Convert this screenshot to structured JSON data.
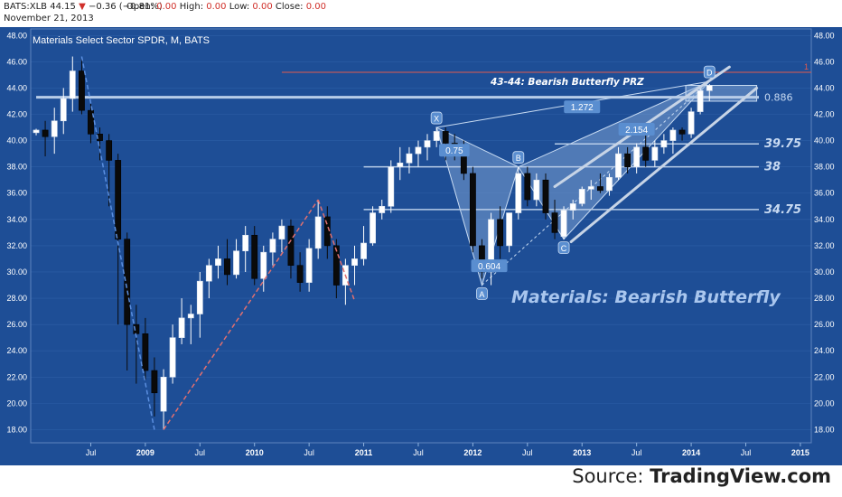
{
  "header": {
    "symbol": "BATS:XLB",
    "last": "44.15",
    "change": "−0.36 (−0.81%)",
    "open_label": "Open:",
    "open": "0.00",
    "high_label": "High:",
    "high": "0.00",
    "low_label": "Low:",
    "low": "0.00",
    "close_label": "Close:",
    "close": "0.00",
    "date": "November 21, 2013"
  },
  "footer": {
    "source_prefix": "Source: ",
    "source_name": "TradingView.com"
  },
  "colors": {
    "background": "#1e4e96",
    "up_candle": "#ffffff",
    "down_candle": "#0a0a0a",
    "horizontal_level": "#b8cde8",
    "resistance_line": "#e05a4e",
    "pattern_fill": "#8fb2de",
    "label_badge": "#5a8ed0",
    "dashed_blue": "#5b8fe0",
    "dashed_red": "#e07070"
  },
  "chart_data": {
    "type": "candlestick",
    "title": "Materials Select Sector SPDR, M, BATS",
    "annotation_title": "Materials: Bearish Butterfly",
    "prz_label": "43-44: Bearish Butterfly PRZ",
    "ylim": [
      17,
      48.5
    ],
    "y_ticks": [
      "18.00",
      "20.00",
      "22.00",
      "24.00",
      "26.00",
      "28.00",
      "30.00",
      "32.00",
      "34.00",
      "36.00",
      "38.00",
      "40.00",
      "42.00",
      "44.00",
      "46.00",
      "48.00"
    ],
    "x_ticks": [
      {
        "label": "Jul",
        "t": 2008.5
      },
      {
        "label": "2009",
        "t": 2009.0
      },
      {
        "label": "Jul",
        "t": 2009.5
      },
      {
        "label": "2010",
        "t": 2010.0
      },
      {
        "label": "Jul",
        "t": 2010.5
      },
      {
        "label": "2011",
        "t": 2011.0
      },
      {
        "label": "Jul",
        "t": 2011.5
      },
      {
        "label": "2012",
        "t": 2012.0
      },
      {
        "label": "Jul",
        "t": 2012.5
      },
      {
        "label": "2013",
        "t": 2013.0
      },
      {
        "label": "Jul",
        "t": 2013.5
      },
      {
        "label": "2014",
        "t": 2014.0
      },
      {
        "label": "Jul",
        "t": 2014.5
      },
      {
        "label": "2015",
        "t": 2015.0
      }
    ],
    "candles": [
      {
        "t": 2008.0,
        "o": 40.6,
        "h": 40.9,
        "l": 40.4,
        "c": 40.8
      },
      {
        "t": 2008.083,
        "o": 40.8,
        "h": 41.5,
        "l": 38.8,
        "c": 40.3
      },
      {
        "t": 2008.167,
        "o": 40.3,
        "h": 42.5,
        "l": 39.0,
        "c": 41.5
      },
      {
        "t": 2008.25,
        "o": 41.5,
        "h": 44.0,
        "l": 40.5,
        "c": 43.2
      },
      {
        "t": 2008.333,
        "o": 43.2,
        "h": 46.4,
        "l": 42.2,
        "c": 45.3
      },
      {
        "t": 2008.417,
        "o": 45.3,
        "h": 46.2,
        "l": 42.0,
        "c": 42.3
      },
      {
        "t": 2008.5,
        "o": 42.3,
        "h": 42.8,
        "l": 39.8,
        "c": 40.5
      },
      {
        "t": 2008.583,
        "o": 40.5,
        "h": 41.0,
        "l": 38.5,
        "c": 40.0
      },
      {
        "t": 2008.667,
        "o": 40.0,
        "h": 40.5,
        "l": 35.0,
        "c": 38.5
      },
      {
        "t": 2008.75,
        "o": 38.5,
        "h": 39.0,
        "l": 26.0,
        "c": 32.5
      },
      {
        "t": 2008.833,
        "o": 32.5,
        "h": 33.0,
        "l": 22.5,
        "c": 26.0
      },
      {
        "t": 2008.917,
        "o": 26.0,
        "h": 27.5,
        "l": 21.5,
        "c": 25.3
      },
      {
        "t": 2009.0,
        "o": 25.3,
        "h": 26.5,
        "l": 21.8,
        "c": 22.5
      },
      {
        "t": 2009.083,
        "o": 22.5,
        "h": 23.5,
        "l": 19.0,
        "c": 20.8
      },
      {
        "t": 2009.167,
        "o": 19.4,
        "h": 22.6,
        "l": 18.0,
        "c": 22.0
      },
      {
        "t": 2009.25,
        "o": 22.0,
        "h": 26.0,
        "l": 21.5,
        "c": 25.0
      },
      {
        "t": 2009.333,
        "o": 25.0,
        "h": 28.0,
        "l": 24.5,
        "c": 26.5
      },
      {
        "t": 2009.417,
        "o": 26.5,
        "h": 27.5,
        "l": 24.5,
        "c": 26.8
      },
      {
        "t": 2009.5,
        "o": 26.8,
        "h": 30.0,
        "l": 25.0,
        "c": 29.3
      },
      {
        "t": 2009.583,
        "o": 29.3,
        "h": 31.0,
        "l": 28.0,
        "c": 30.5
      },
      {
        "t": 2009.667,
        "o": 30.5,
        "h": 32.0,
        "l": 29.5,
        "c": 31.0
      },
      {
        "t": 2009.75,
        "o": 31.0,
        "h": 32.5,
        "l": 29.0,
        "c": 29.8
      },
      {
        "t": 2009.833,
        "o": 29.8,
        "h": 32.5,
        "l": 29.5,
        "c": 31.6
      },
      {
        "t": 2009.917,
        "o": 31.6,
        "h": 33.5,
        "l": 30.0,
        "c": 32.8
      },
      {
        "t": 2010.0,
        "o": 32.8,
        "h": 33.5,
        "l": 29.0,
        "c": 29.5
      },
      {
        "t": 2010.083,
        "o": 29.5,
        "h": 32.0,
        "l": 28.5,
        "c": 31.5
      },
      {
        "t": 2010.167,
        "o": 31.5,
        "h": 33.0,
        "l": 30.5,
        "c": 32.5
      },
      {
        "t": 2010.25,
        "o": 32.5,
        "h": 34.0,
        "l": 31.5,
        "c": 33.5
      },
      {
        "t": 2010.333,
        "o": 33.5,
        "h": 34.0,
        "l": 29.5,
        "c": 30.5
      },
      {
        "t": 2010.417,
        "o": 30.5,
        "h": 31.5,
        "l": 28.5,
        "c": 29.2
      },
      {
        "t": 2010.5,
        "o": 29.2,
        "h": 32.5,
        "l": 28.5,
        "c": 31.8
      },
      {
        "t": 2010.583,
        "o": 31.8,
        "h": 35.5,
        "l": 31.0,
        "c": 34.2
      },
      {
        "t": 2010.667,
        "o": 34.2,
        "h": 35.0,
        "l": 31.0,
        "c": 32.0
      },
      {
        "t": 2010.75,
        "o": 32.0,
        "h": 32.5,
        "l": 28.0,
        "c": 29.0
      },
      {
        "t": 2010.833,
        "o": 29.0,
        "h": 31.0,
        "l": 27.5,
        "c": 30.5
      },
      {
        "t": 2010.917,
        "o": 30.5,
        "h": 32.0,
        "l": 29.0,
        "c": 31.0
      },
      {
        "t": 2011.0,
        "o": 31.0,
        "h": 33.5,
        "l": 30.5,
        "c": 32.2
      },
      {
        "t": 2011.083,
        "o": 32.2,
        "h": 35.0,
        "l": 32.0,
        "c": 34.5
      },
      {
        "t": 2011.167,
        "o": 34.5,
        "h": 35.5,
        "l": 34.0,
        "c": 35.0
      },
      {
        "t": 2011.25,
        "o": 35.0,
        "h": 38.5,
        "l": 34.5,
        "c": 38.0
      },
      {
        "t": 2011.333,
        "o": 38.0,
        "h": 39.5,
        "l": 37.0,
        "c": 38.3
      },
      {
        "t": 2011.417,
        "o": 38.3,
        "h": 39.5,
        "l": 37.5,
        "c": 39.0
      },
      {
        "t": 2011.5,
        "o": 39.0,
        "h": 40.0,
        "l": 38.0,
        "c": 39.5
      },
      {
        "t": 2011.583,
        "o": 39.5,
        "h": 40.5,
        "l": 38.5,
        "c": 40.0
      },
      {
        "t": 2011.667,
        "o": 40.0,
        "h": 41.0,
        "l": 39.5,
        "c": 40.7
      },
      {
        "t": 2011.75,
        "o": 40.7,
        "h": 41.0,
        "l": 38.5,
        "c": 39.8
      },
      {
        "t": 2011.833,
        "o": 39.8,
        "h": 40.5,
        "l": 38.5,
        "c": 39.3
      },
      {
        "t": 2011.917,
        "o": 39.3,
        "h": 40.0,
        "l": 37.0,
        "c": 37.5
      },
      {
        "t": 2012.0,
        "o": 37.5,
        "h": 38.0,
        "l": 31.5,
        "c": 32.0
      },
      {
        "t": 2012.083,
        "o": 32.0,
        "h": 32.5,
        "l": 29.5,
        "c": 30.0
      },
      {
        "t": 2012.167,
        "o": 30.0,
        "h": 34.5,
        "l": 29.0,
        "c": 34.0
      },
      {
        "t": 2012.25,
        "o": 34.0,
        "h": 35.0,
        "l": 31.0,
        "c": 32.0
      },
      {
        "t": 2012.333,
        "o": 32.0,
        "h": 34.5,
        "l": 31.5,
        "c": 34.5
      },
      {
        "t": 2012.417,
        "o": 34.5,
        "h": 38.0,
        "l": 34.0,
        "c": 37.5
      },
      {
        "t": 2012.5,
        "o": 37.5,
        "h": 38.0,
        "l": 35.0,
        "c": 35.5
      },
      {
        "t": 2012.583,
        "o": 35.5,
        "h": 37.5,
        "l": 35.0,
        "c": 37.0
      },
      {
        "t": 2012.667,
        "o": 37.0,
        "h": 37.5,
        "l": 34.0,
        "c": 34.5
      },
      {
        "t": 2012.75,
        "o": 34.5,
        "h": 35.5,
        "l": 32.5,
        "c": 33.0
      },
      {
        "t": 2012.833,
        "o": 32.7,
        "h": 35.0,
        "l": 32.5,
        "c": 34.7
      },
      {
        "t": 2012.917,
        "o": 34.7,
        "h": 35.5,
        "l": 34.0,
        "c": 35.2
      },
      {
        "t": 2013.0,
        "o": 35.2,
        "h": 36.5,
        "l": 35.0,
        "c": 36.3
      },
      {
        "t": 2013.083,
        "o": 36.3,
        "h": 37.0,
        "l": 35.5,
        "c": 36.5
      },
      {
        "t": 2013.167,
        "o": 36.5,
        "h": 37.5,
        "l": 36.0,
        "c": 36.2
      },
      {
        "t": 2013.25,
        "o": 36.2,
        "h": 37.5,
        "l": 35.8,
        "c": 37.2
      },
      {
        "t": 2013.333,
        "o": 37.2,
        "h": 39.5,
        "l": 37.0,
        "c": 39.0
      },
      {
        "t": 2013.417,
        "o": 39.0,
        "h": 39.5,
        "l": 37.5,
        "c": 38.0
      },
      {
        "t": 2013.5,
        "o": 38.0,
        "h": 39.8,
        "l": 37.5,
        "c": 39.5
      },
      {
        "t": 2013.583,
        "o": 39.5,
        "h": 40.5,
        "l": 38.0,
        "c": 38.5
      },
      {
        "t": 2013.667,
        "o": 38.5,
        "h": 40.0,
        "l": 38.0,
        "c": 39.5
      },
      {
        "t": 2013.75,
        "o": 39.5,
        "h": 40.5,
        "l": 39.0,
        "c": 40.0
      },
      {
        "t": 2013.833,
        "o": 40.0,
        "h": 41.0,
        "l": 39.0,
        "c": 40.8
      },
      {
        "t": 2013.917,
        "o": 40.8,
        "h": 41.0,
        "l": 40.0,
        "c": 40.5
      },
      {
        "t": 2014.0,
        "o": 40.5,
        "h": 42.5,
        "l": 40.2,
        "c": 42.2
      },
      {
        "t": 2014.083,
        "o": 42.2,
        "h": 44.2,
        "l": 42.0,
        "c": 43.8
      },
      {
        "t": 2014.167,
        "o": 43.8,
        "h": 44.3,
        "l": 43.0,
        "c": 44.2
      }
    ],
    "levels": [
      {
        "label": "",
        "value": 45.2,
        "kind": "resistance",
        "x_start": 2010.25
      },
      {
        "label": "0.886",
        "value": 43.3,
        "kind": "level",
        "x_start": 2008.0
      },
      {
        "label": "39.75",
        "value": 39.75,
        "kind": "level",
        "x_start": 2012.75
      },
      {
        "label": "38",
        "value": 38.0,
        "kind": "level",
        "x_start": 2011.0
      },
      {
        "label": "34.75",
        "value": 34.75,
        "kind": "level",
        "x_start": 2011.0
      }
    ],
    "resistance_tag": "1",
    "pattern_points": [
      {
        "label": "X",
        "t": 2011.667,
        "v": 41.0
      },
      {
        "label": "A",
        "t": 2012.083,
        "v": 29.0
      },
      {
        "label": "B",
        "t": 2012.417,
        "v": 38.0
      },
      {
        "label": "C",
        "t": 2012.833,
        "v": 32.5
      },
      {
        "label": "D",
        "t": 2014.167,
        "v": 44.5
      }
    ],
    "ratios": [
      {
        "label": "0.75",
        "t": 2011.83,
        "v": 39.2
      },
      {
        "label": "0.604",
        "t": 2012.15,
        "v": 30.4
      },
      {
        "label": "1.272",
        "t": 2013.0,
        "v": 42.5
      },
      {
        "label": "2.154",
        "t": 2013.5,
        "v": 40.8
      }
    ],
    "channel": [
      {
        "t0": 2012.75,
        "v0": 36.5,
        "t1": 2014.35,
        "v1": 45.6
      },
      {
        "t0": 2012.9,
        "v0": 32.3,
        "t1": 2014.6,
        "v1": 44.0
      }
    ],
    "dashed_legs": [
      {
        "color": "blue",
        "points": [
          [
            2008.417,
            46.4
          ],
          [
            2009.083,
            18.0
          ]
        ]
      },
      {
        "color": "red",
        "points": [
          [
            2009.167,
            18.0
          ],
          [
            2010.583,
            35.5
          ]
        ]
      },
      {
        "color": "red",
        "points": [
          [
            2010.583,
            35.5
          ],
          [
            2010.917,
            27.8
          ]
        ]
      }
    ]
  }
}
